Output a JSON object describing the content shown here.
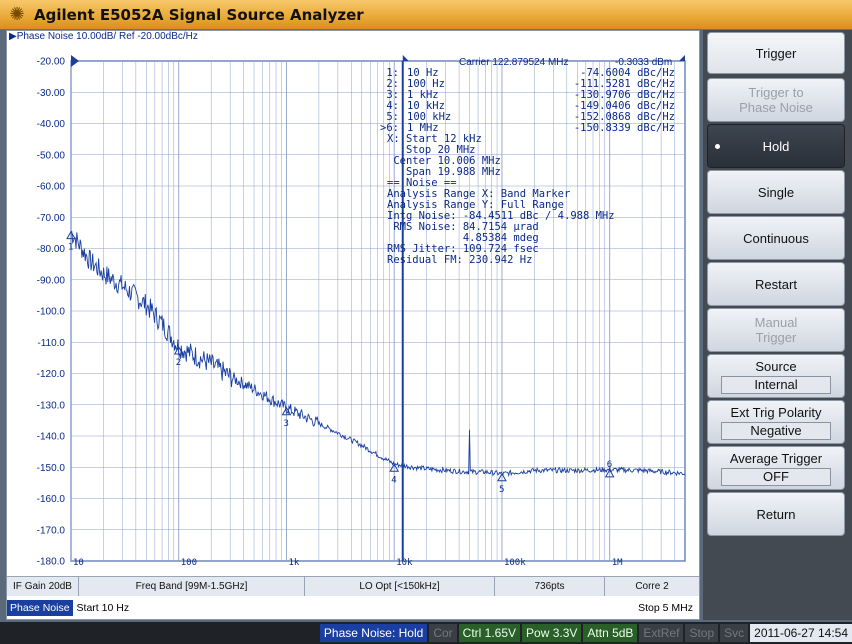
{
  "window": {
    "title": "Agilent E5052A Signal Source Analyzer"
  },
  "plot": {
    "header": "▶Phase Noise 10.00dB/ Ref -20.00dBc/Hz",
    "carrier": "Carrier 122.879524 MHz",
    "carrier_level": "-0.3033 dBm",
    "y_ticks": [
      "-20.00",
      "-30.00",
      "-40.00",
      "-50.00",
      "-60.00",
      "-70.00",
      "-80.00",
      "-90.00",
      "-100.0",
      "-110.0",
      "-120.0",
      "-130.0",
      "-140.0",
      "-150.0",
      "-160.0",
      "-170.0",
      "-180.0"
    ],
    "x_ticks": [
      "10",
      "100",
      "1k",
      "10k",
      "100k",
      "1M"
    ],
    "markers": [
      {
        "label": "1:",
        "freq": "10 Hz",
        "value": "-74.6004 dBc/Hz"
      },
      {
        "label": "2:",
        "freq": "100 Hz",
        "value": "-111.5281 dBc/Hz"
      },
      {
        "label": "3:",
        "freq": "1 kHz",
        "value": "-130.9706 dBc/Hz"
      },
      {
        "label": "4:",
        "freq": "10 kHz",
        "value": "-149.0406 dBc/Hz"
      },
      {
        "label": "5:",
        "freq": "100 kHz",
        "value": "-152.0868 dBc/Hz"
      },
      {
        "label": ">6:",
        "freq": "1 MHz",
        "value": "-150.8339 dBc/Hz"
      }
    ],
    "info_lines": [
      "X: Start 12 kHz",
      "   Stop 20 MHz",
      " Center 10.006 MHz",
      "   Span 19.988 MHz",
      "== Noise ==",
      "Analysis Range X: Band Marker",
      "Analysis Range Y: Full Range",
      "Intg Noise: -84.4511 dBc / 4.988 MHz",
      " RMS Noise: 84.7154 µrad",
      "            4.85384 mdeg",
      "RMS Jitter: 109.724 fsec",
      "Residual FM: 230.942 Hz"
    ],
    "marker_numbers": [
      "1",
      "2",
      "3",
      "4",
      "5",
      "6"
    ]
  },
  "chart_data": {
    "type": "line",
    "title": "Phase Noise 10.00dB/ Ref -20.00dBc/Hz",
    "xlabel": "",
    "ylabel": "",
    "x_scale": "log",
    "xlim": [
      10,
      5000000
    ],
    "ylim": [
      -180,
      -20
    ],
    "grid": true,
    "series": [
      {
        "x": [
          10,
          15,
          20,
          30,
          50,
          70,
          100,
          200,
          300,
          500,
          700,
          1000,
          2000,
          3000,
          5000,
          7000,
          10000,
          15000,
          20000,
          30000,
          50000,
          70000,
          100000,
          200000,
          500000,
          1000000,
          2000000,
          5000000
        ],
        "values": [
          -74.6,
          -84,
          -88,
          -92,
          -98,
          -104,
          -111.5,
          -117,
          -121,
          -125,
          -128,
          -131,
          -136,
          -139,
          -143,
          -146,
          -149,
          -150,
          -150.5,
          -151,
          -151.5,
          -151.5,
          -152.1,
          -151,
          -151,
          -150.8,
          -151,
          -152
        ]
      }
    ],
    "markers_x": [
      10,
      100,
      1000,
      10000,
      100000,
      1000000
    ],
    "markers_y": [
      -74.6004,
      -111.5281,
      -130.9706,
      -149.0406,
      -152.0868,
      -150.8339
    ],
    "spur": {
      "x": 50000,
      "y": -138
    }
  },
  "status": {
    "if_gain": "IF Gain 20dB",
    "freq_band": "Freq Band [99M-1.5GHz]",
    "lo_opt": "LO Opt [<150kHz]",
    "points": "736pts",
    "corr": "Corre 2"
  },
  "bottom": {
    "channel": "Phase Noise",
    "start": "Start 10 Hz",
    "stop": "Stop 5 MHz"
  },
  "softkeys": {
    "trigger": "Trigger",
    "trigger_to_pn_1": "Trigger to",
    "trigger_to_pn_2": "Phase Noise",
    "hold": "Hold",
    "single": "Single",
    "continuous": "Continuous",
    "restart": "Restart",
    "manual_1": "Manual",
    "manual_2": "Trigger",
    "source": "Source",
    "source_val": "Internal",
    "ext_trig": "Ext Trig Polarity",
    "ext_trig_val": "Negative",
    "avg_trig": "Average Trigger",
    "avg_trig_val": "OFF",
    "return": "Return"
  },
  "footer": {
    "mode": "Phase Noise: Hold",
    "cor": "Cor",
    "ctrl": "Ctrl  1.65V",
    "pow": "Pow  3.3V",
    "attn": "Attn 5dB",
    "extref": "ExtRef",
    "stop": "Stop",
    "svc": "Svc",
    "datetime": "2011-06-27 14:54"
  }
}
